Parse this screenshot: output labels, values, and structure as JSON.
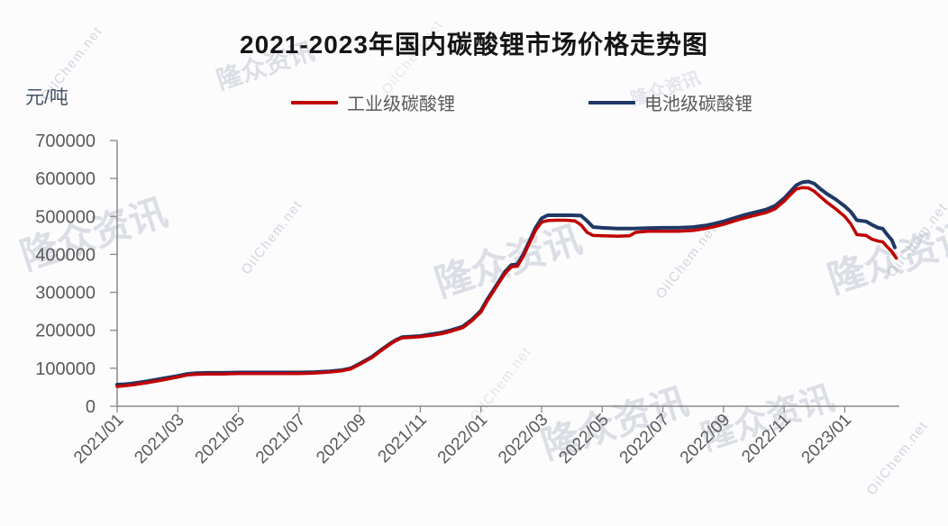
{
  "title": "2021-2023年国内碳酸锂市场价格走势图",
  "unit_label": "元/吨",
  "legend": {
    "industrial": {
      "label": "工业级碳酸锂",
      "color": "#c00000"
    },
    "battery": {
      "label": "电池级碳酸锂",
      "color": "#1f3864"
    }
  },
  "watermarks": {
    "oilchem": "OilChem.net",
    "stamp": "隆众资讯"
  },
  "axis_colors": {
    "axis": "#8a8a8a",
    "tick_label": "#595959"
  },
  "chart_data": {
    "type": "line",
    "title": "2021-2023年国内碳酸锂市场价格走势图",
    "xlabel": "",
    "ylabel": "元/吨",
    "ylim": [
      0,
      700000
    ],
    "y_ticks": [
      0,
      100000,
      200000,
      300000,
      400000,
      500000,
      600000,
      700000
    ],
    "x_tick_labels": [
      "2021/01",
      "2021/03",
      "2021/05",
      "2021/07",
      "2021/09",
      "2021/11",
      "2022/01",
      "2022/03",
      "2022/05",
      "2022/07",
      "2022/09",
      "2022/11",
      "2023/01"
    ],
    "x_months_per_tick": 2,
    "x_range_months": [
      0,
      25.8
    ],
    "grid": false,
    "legend_position": "top",
    "series": [
      {
        "name": "电池级碳酸锂",
        "color": "#1f3864",
        "width": 4,
        "points": [
          [
            0,
            57000
          ],
          [
            0.25,
            58000
          ],
          [
            0.5,
            60000
          ],
          [
            1,
            66000
          ],
          [
            1.5,
            73000
          ],
          [
            2,
            80000
          ],
          [
            2.3,
            85000
          ],
          [
            2.6,
            87000
          ],
          [
            3,
            88000
          ],
          [
            3.5,
            88000
          ],
          [
            4,
            89000
          ],
          [
            4.5,
            89000
          ],
          [
            5,
            89000
          ],
          [
            5.5,
            89000
          ],
          [
            6,
            89000
          ],
          [
            6.5,
            90000
          ],
          [
            7,
            92000
          ],
          [
            7.4,
            95000
          ],
          [
            7.7,
            100000
          ],
          [
            8,
            112000
          ],
          [
            8.4,
            130000
          ],
          [
            8.7,
            148000
          ],
          [
            9,
            165000
          ],
          [
            9.2,
            175000
          ],
          [
            9.4,
            182000
          ],
          [
            9.6,
            183000
          ],
          [
            10,
            185000
          ],
          [
            10.4,
            190000
          ],
          [
            10.7,
            194000
          ],
          [
            11,
            200000
          ],
          [
            11.4,
            210000
          ],
          [
            11.7,
            228000
          ],
          [
            12,
            252000
          ],
          [
            12.2,
            280000
          ],
          [
            12.4,
            305000
          ],
          [
            12.6,
            330000
          ],
          [
            12.8,
            355000
          ],
          [
            13,
            372000
          ],
          [
            13.2,
            374000
          ],
          [
            13.4,
            400000
          ],
          [
            13.6,
            435000
          ],
          [
            13.8,
            470000
          ],
          [
            14,
            495000
          ],
          [
            14.2,
            503000
          ],
          [
            14.5,
            503000
          ],
          [
            15,
            503000
          ],
          [
            15.3,
            502000
          ],
          [
            15.5,
            488000
          ],
          [
            15.7,
            472000
          ],
          [
            16,
            470000
          ],
          [
            16.5,
            468000
          ],
          [
            17,
            468000
          ],
          [
            17.5,
            469000
          ],
          [
            18,
            470000
          ],
          [
            18.5,
            470000
          ],
          [
            19,
            472000
          ],
          [
            19.4,
            476000
          ],
          [
            19.7,
            481000
          ],
          [
            20,
            487000
          ],
          [
            20.4,
            497000
          ],
          [
            20.7,
            504000
          ],
          [
            21,
            510000
          ],
          [
            21.4,
            518000
          ],
          [
            21.7,
            528000
          ],
          [
            22,
            548000
          ],
          [
            22.2,
            565000
          ],
          [
            22.4,
            582000
          ],
          [
            22.6,
            590000
          ],
          [
            22.8,
            592000
          ],
          [
            23,
            586000
          ],
          [
            23.2,
            572000
          ],
          [
            23.4,
            560000
          ],
          [
            23.7,
            545000
          ],
          [
            24,
            527000
          ],
          [
            24.2,
            512000
          ],
          [
            24.4,
            490000
          ],
          [
            24.7,
            487000
          ],
          [
            24.9,
            478000
          ],
          [
            25.1,
            470000
          ],
          [
            25.25,
            468000
          ],
          [
            25.4,
            452000
          ],
          [
            25.55,
            438000
          ],
          [
            25.65,
            418000
          ]
        ]
      },
      {
        "name": "工业级碳酸锂",
        "color": "#c00000",
        "width": 3.5,
        "points": [
          [
            0,
            52000
          ],
          [
            0.25,
            54000
          ],
          [
            0.5,
            56000
          ],
          [
            1,
            62000
          ],
          [
            1.5,
            69000
          ],
          [
            2,
            77000
          ],
          [
            2.3,
            82000
          ],
          [
            2.6,
            84000
          ],
          [
            3,
            85000
          ],
          [
            3.5,
            85000
          ],
          [
            4,
            86000
          ],
          [
            4.5,
            86000
          ],
          [
            5,
            86000
          ],
          [
            5.5,
            86000
          ],
          [
            6,
            86000
          ],
          [
            6.5,
            87000
          ],
          [
            7,
            90000
          ],
          [
            7.4,
            93000
          ],
          [
            7.7,
            98000
          ],
          [
            8,
            110000
          ],
          [
            8.4,
            128000
          ],
          [
            8.7,
            146000
          ],
          [
            9,
            163000
          ],
          [
            9.2,
            173000
          ],
          [
            9.4,
            180000
          ],
          [
            9.6,
            181000
          ],
          [
            10,
            183000
          ],
          [
            10.4,
            187000
          ],
          [
            10.7,
            191000
          ],
          [
            11,
            197000
          ],
          [
            11.4,
            207000
          ],
          [
            11.7,
            225000
          ],
          [
            12,
            248000
          ],
          [
            12.2,
            276000
          ],
          [
            12.4,
            301000
          ],
          [
            12.6,
            326000
          ],
          [
            12.8,
            350000
          ],
          [
            13,
            367000
          ],
          [
            13.2,
            369000
          ],
          [
            13.4,
            395000
          ],
          [
            13.6,
            430000
          ],
          [
            13.8,
            463000
          ],
          [
            14,
            485000
          ],
          [
            14.2,
            489000
          ],
          [
            14.5,
            490000
          ],
          [
            14.8,
            490000
          ],
          [
            15.1,
            488000
          ],
          [
            15.3,
            478000
          ],
          [
            15.5,
            458000
          ],
          [
            15.7,
            450000
          ],
          [
            16,
            449000
          ],
          [
            16.5,
            448000
          ],
          [
            16.9,
            449000
          ],
          [
            17.1,
            458000
          ],
          [
            17.5,
            461000
          ],
          [
            18,
            461000
          ],
          [
            18.5,
            461000
          ],
          [
            19,
            463000
          ],
          [
            19.4,
            468000
          ],
          [
            19.7,
            473000
          ],
          [
            20,
            479000
          ],
          [
            20.4,
            489000
          ],
          [
            20.7,
            496000
          ],
          [
            21,
            502000
          ],
          [
            21.4,
            510000
          ],
          [
            21.7,
            520000
          ],
          [
            22,
            540000
          ],
          [
            22.2,
            557000
          ],
          [
            22.4,
            572000
          ],
          [
            22.6,
            576000
          ],
          [
            22.8,
            575000
          ],
          [
            23,
            566000
          ],
          [
            23.2,
            552000
          ],
          [
            23.4,
            538000
          ],
          [
            23.7,
            520000
          ],
          [
            24,
            500000
          ],
          [
            24.2,
            480000
          ],
          [
            24.4,
            452000
          ],
          [
            24.7,
            450000
          ],
          [
            24.9,
            440000
          ],
          [
            25.1,
            435000
          ],
          [
            25.25,
            433000
          ],
          [
            25.4,
            420000
          ],
          [
            25.55,
            408000
          ],
          [
            25.7,
            390000
          ]
        ]
      }
    ]
  }
}
